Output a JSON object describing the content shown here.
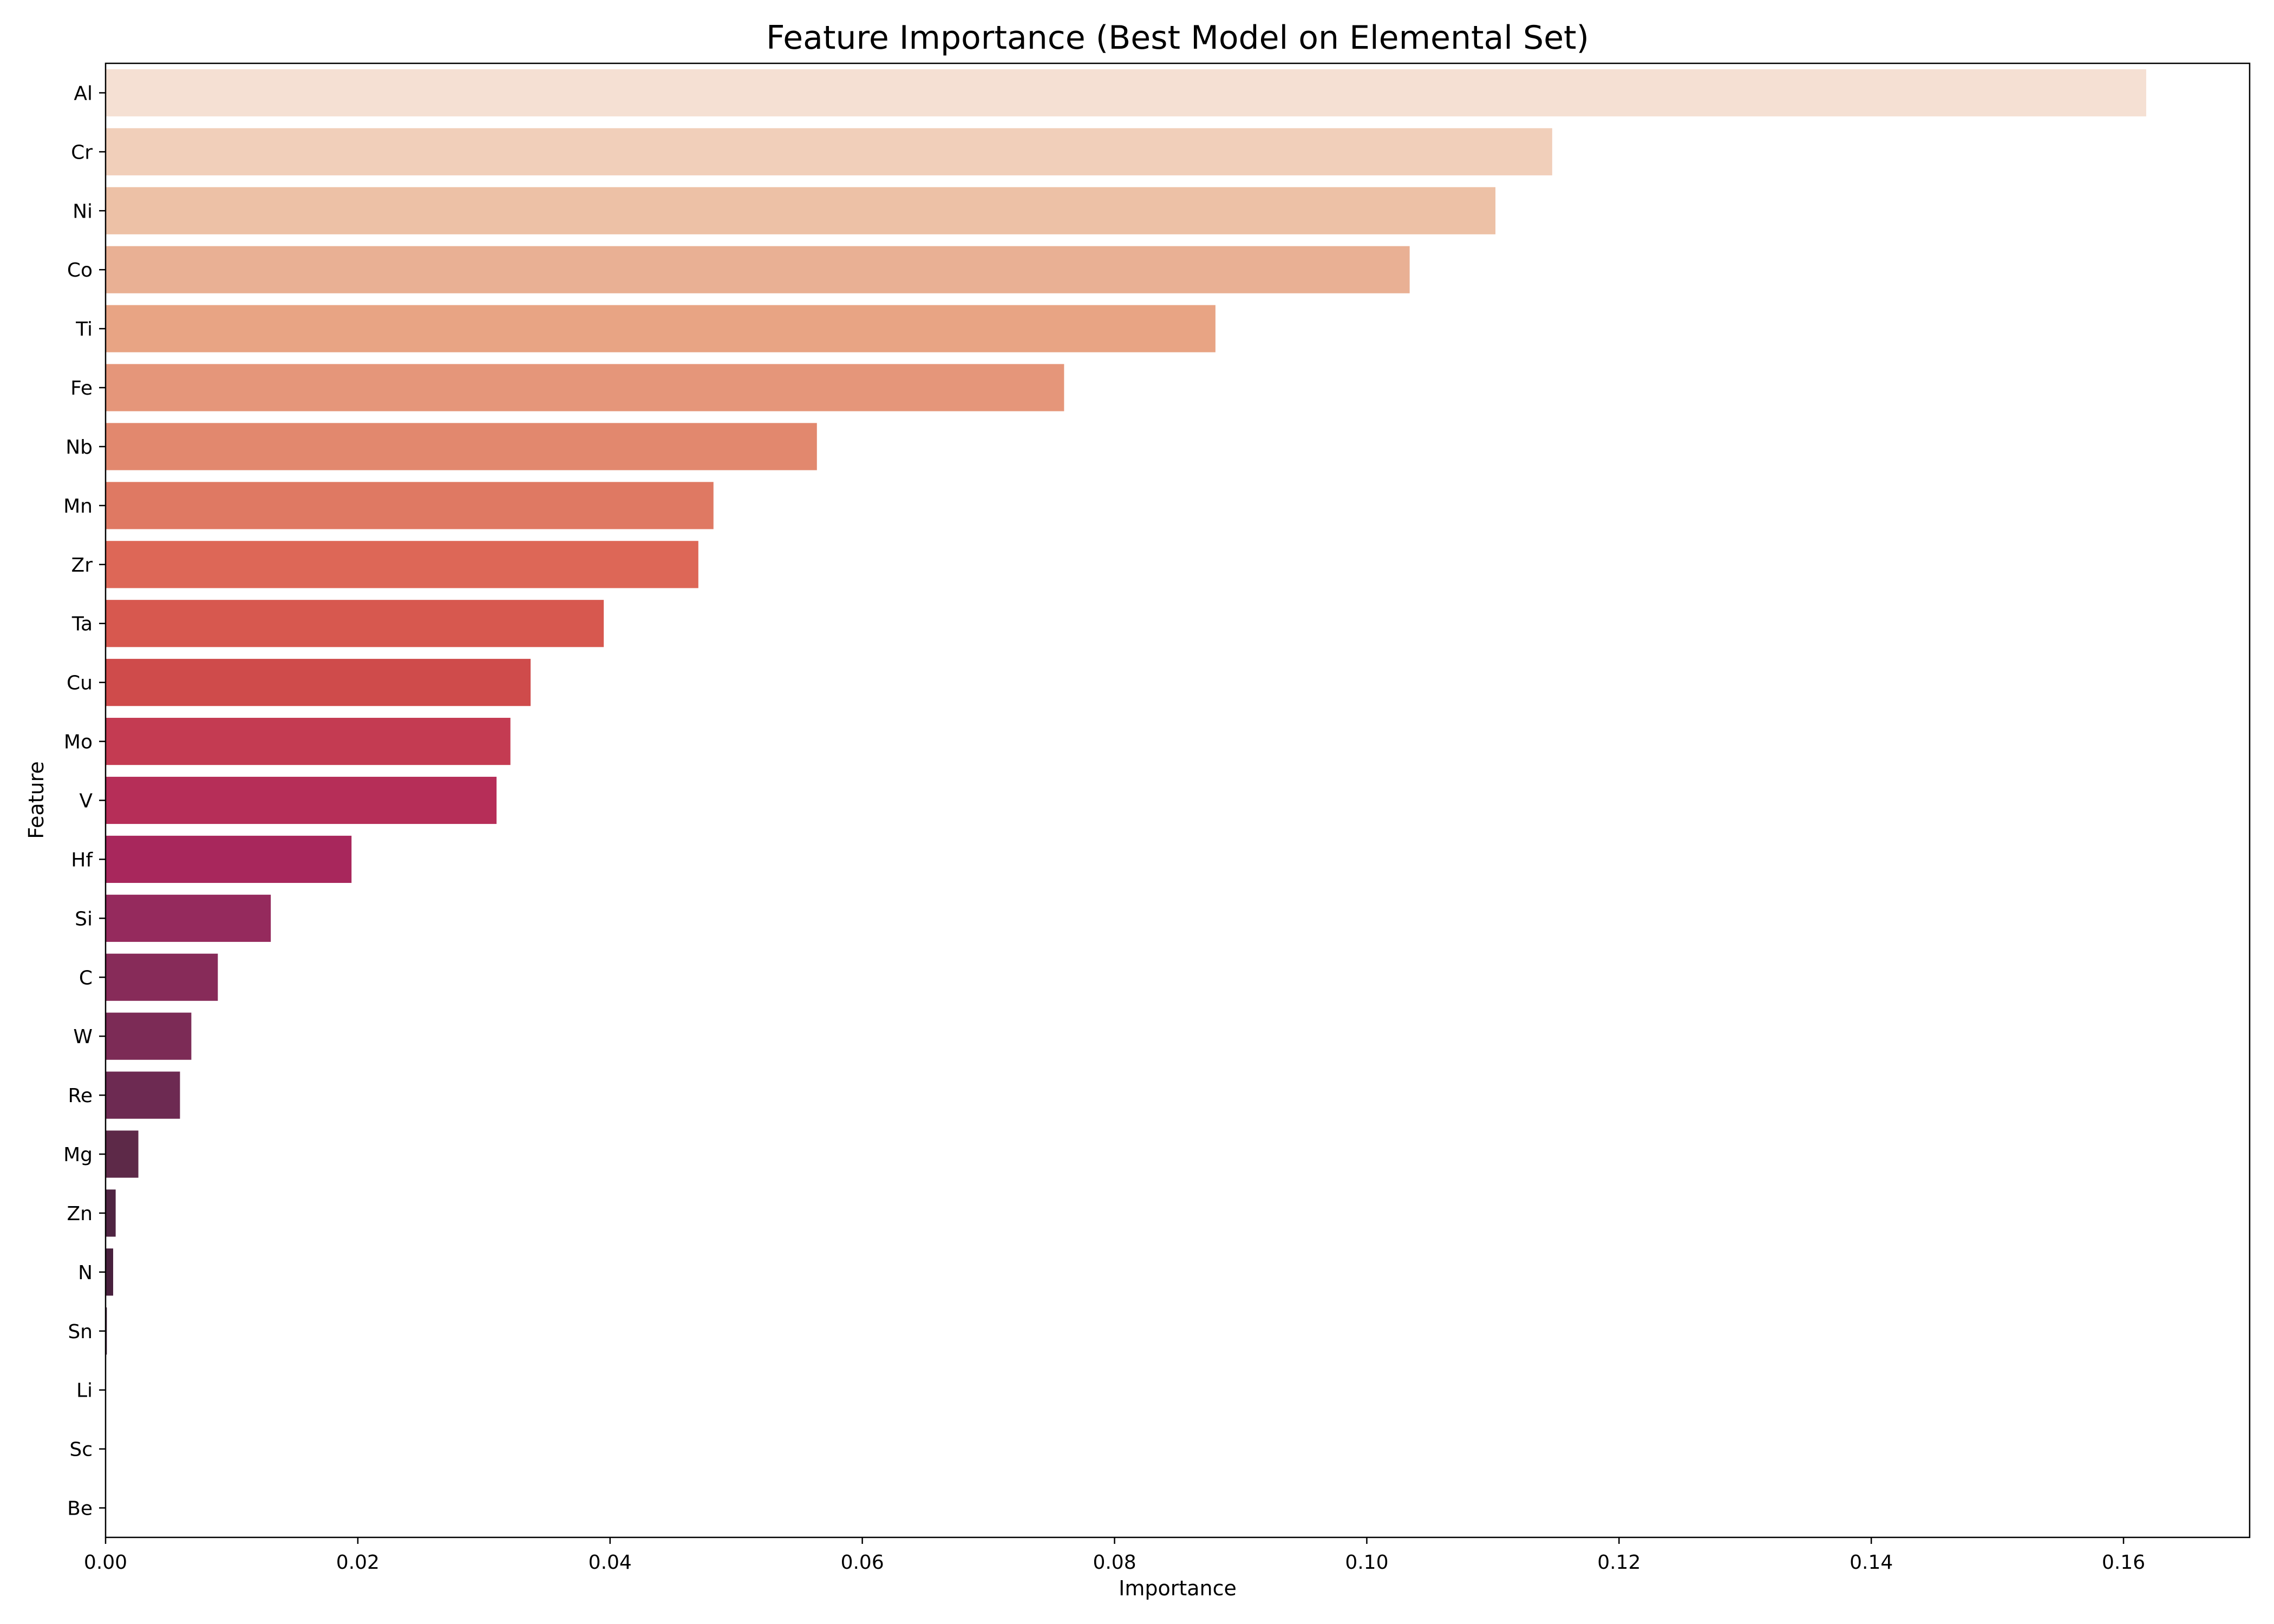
{
  "chart_data": {
    "type": "bar",
    "orientation": "horizontal",
    "title": "Feature Importance (Best Model on Elemental Set)",
    "xlabel": "Importance",
    "ylabel": "Feature",
    "xlim": [
      0,
      0.17
    ],
    "xticks": [
      "0.00",
      "0.02",
      "0.04",
      "0.06",
      "0.08",
      "0.10",
      "0.12",
      "0.14",
      "0.16"
    ],
    "grid": false,
    "categories": [
      "Al",
      "Cr",
      "Ni",
      "Co",
      "Ti",
      "Fe",
      "Nb",
      "Mn",
      "Zr",
      "Ta",
      "Cu",
      "Mo",
      "V",
      "Hf",
      "Si",
      "C",
      "W",
      "Re",
      "Mg",
      "Zn",
      "N",
      "Sn",
      "Li",
      "Sc",
      "Be"
    ],
    "values": [
      0.1618,
      0.1147,
      0.1102,
      0.1034,
      0.088,
      0.076,
      0.0564,
      0.0482,
      0.047,
      0.0395,
      0.0337,
      0.0321,
      0.031,
      0.0195,
      0.0131,
      0.0089,
      0.0068,
      0.0059,
      0.0026,
      0.0008,
      0.0006,
      0.0001,
      0.0,
      0.0,
      0.0
    ],
    "colors": [
      "#f5e0d3",
      "#f1cfba",
      "#edc1a6",
      "#e9b094",
      "#e8a484",
      "#e5967a",
      "#e2886e",
      "#df7963",
      "#dd6757",
      "#d7584f",
      "#cf4b4b",
      "#c43b52",
      "#b62e58",
      "#a8275c",
      "#952a5d",
      "#872b59",
      "#7c2b56",
      "#6d2a52",
      "#5d2948",
      "#4f2442",
      "#48203d",
      "#3f1d38",
      "#361a32",
      "#30172d",
      "#2a1528"
    ]
  }
}
